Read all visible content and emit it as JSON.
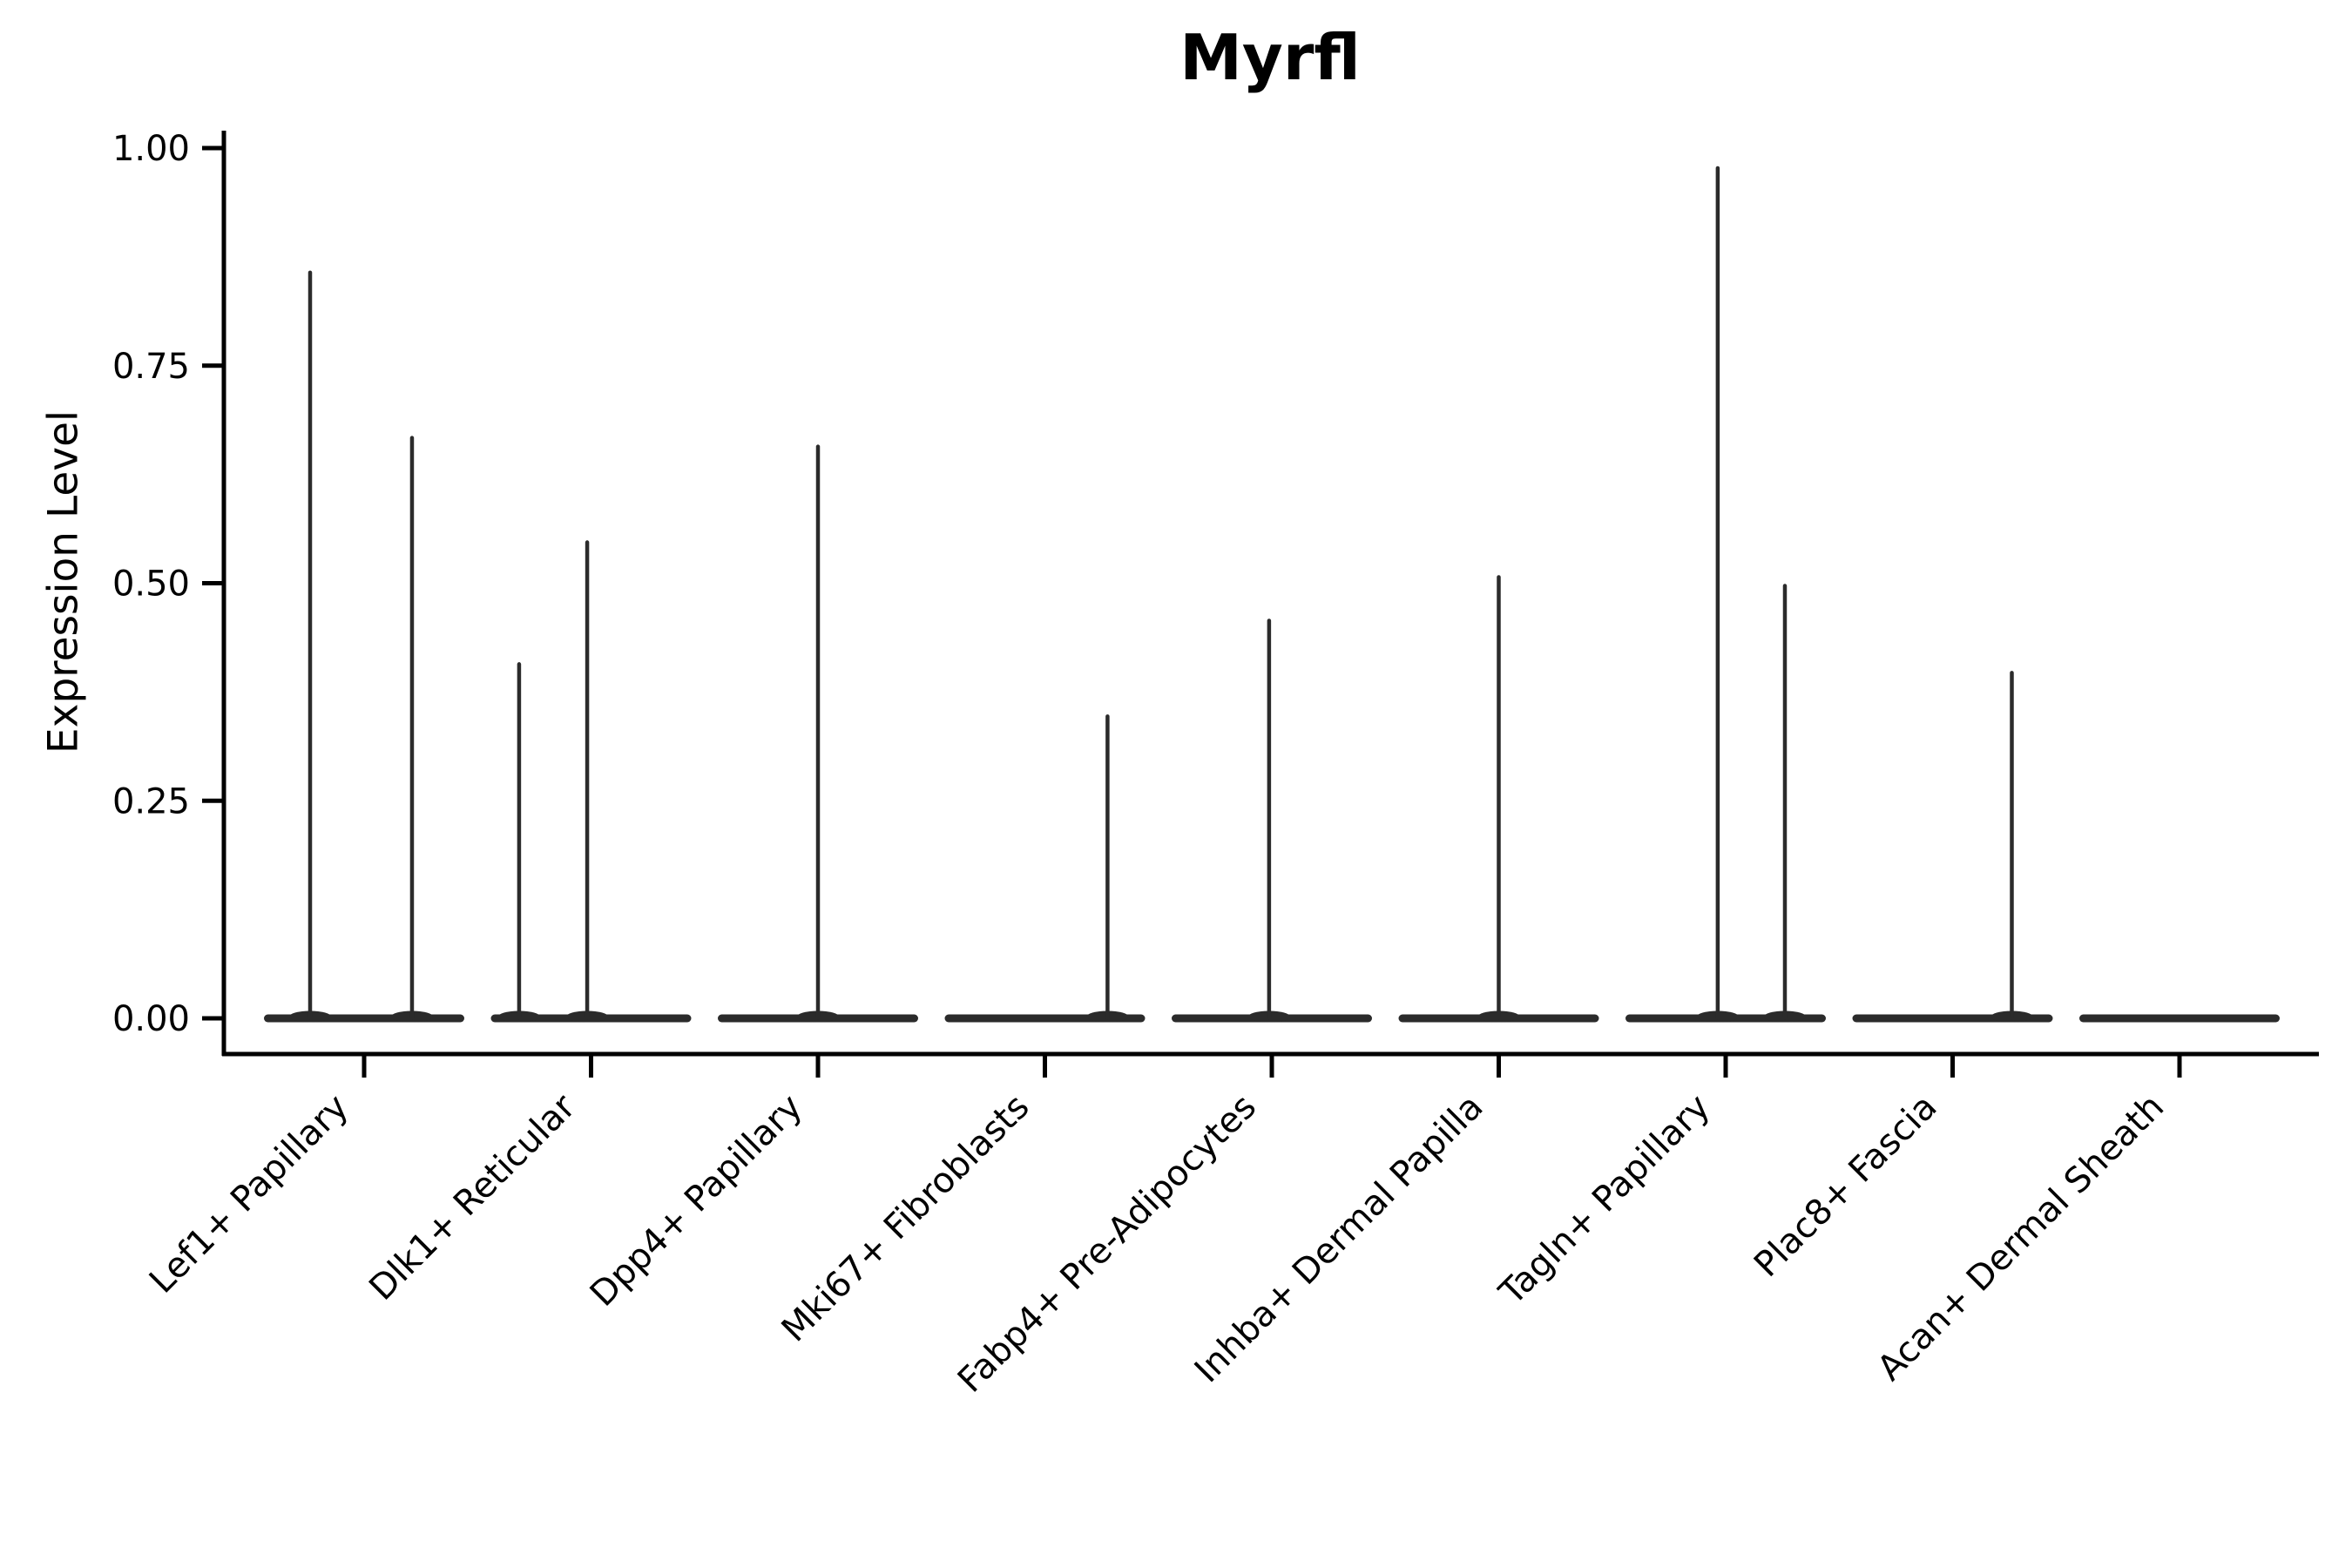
{
  "chart_data": {
    "type": "violin",
    "title": "Myrfl",
    "ylabel": "Expression Level",
    "xlabel": "",
    "ylim": [
      0.0,
      1.0
    ],
    "y_ticks": [
      0.0,
      0.25,
      0.5,
      0.75,
      1.0
    ],
    "y_tick_labels": [
      "0.00",
      "0.25",
      "0.50",
      "0.75",
      "1.00"
    ],
    "grid": false,
    "legend": "none",
    "categories": [
      "Lef1+ Papillary",
      "Dlk1+ Reticular",
      "Dpp4+ Papillary",
      "Mki67+ Fibroblasts",
      "Fabp4+ Pre-Adipocytes",
      "Inhba+ Dermal Papilla",
      "Tagln+ Papillary",
      "Plac8+ Fascia",
      "Acan+ Dermal Sheath"
    ],
    "violins": [
      {
        "category": "Lef1+ Papillary",
        "baseline_value": 0.0,
        "spikes": [
          {
            "offset_frac": -0.238,
            "value": 0.86
          },
          {
            "offset_frac": 0.211,
            "value": 0.67
          }
        ]
      },
      {
        "category": "Dlk1+ Reticular",
        "baseline_value": 0.0,
        "spikes": [
          {
            "offset_frac": -0.317,
            "value": 0.41
          },
          {
            "offset_frac": -0.017,
            "value": 0.55
          }
        ]
      },
      {
        "category": "Dpp4+ Papillary",
        "baseline_value": 0.0,
        "spikes": [
          {
            "offset_frac": 0.0,
            "value": 0.66
          }
        ]
      },
      {
        "category": "Mki67+ Fibroblasts",
        "baseline_value": 0.0,
        "spikes": [
          {
            "offset_frac": 0.276,
            "value": 0.35
          }
        ]
      },
      {
        "category": "Fabp4+ Pre-Adipocytes",
        "baseline_value": 0.0,
        "spikes": [
          {
            "offset_frac": -0.012,
            "value": 0.46
          }
        ]
      },
      {
        "category": "Inhba+ Dermal Papilla",
        "baseline_value": 0.0,
        "spikes": [
          {
            "offset_frac": 0.0,
            "value": 0.51
          }
        ]
      },
      {
        "category": "Tagln+ Papillary",
        "baseline_value": 0.0,
        "spikes": [
          {
            "offset_frac": -0.035,
            "value": 0.98
          },
          {
            "offset_frac": 0.261,
            "value": 0.5
          }
        ]
      },
      {
        "category": "Plac8+ Fascia",
        "baseline_value": 0.0,
        "spikes": [
          {
            "offset_frac": 0.261,
            "value": 0.4
          }
        ]
      },
      {
        "category": "Acan+ Dermal Sheath",
        "baseline_value": 0.0,
        "spikes": []
      }
    ],
    "colors": {
      "violin": "#2b2b2b",
      "axis": "#000000",
      "background": "#ffffff"
    }
  }
}
